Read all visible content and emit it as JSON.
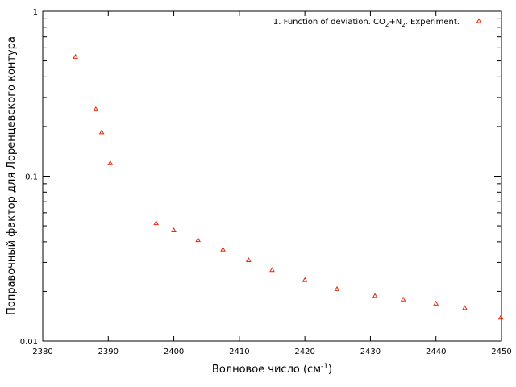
{
  "chart_data": {
    "type": "scatter",
    "title": "",
    "xlabel": "Волновое число (см",
    "xlabel_sup": "-1",
    "xlabel_tail": ")",
    "ylabel": "Поправочный фактор для Лоренцевского контура",
    "xlim": [
      2380,
      2450
    ],
    "ylim": [
      0.01,
      1
    ],
    "yscale": "log",
    "grid": false,
    "legend_position": "top-right",
    "x_ticks": [
      2380,
      2390,
      2400,
      2410,
      2420,
      2430,
      2440,
      2450
    ],
    "x_tick_labels": [
      "2380",
      "2390",
      "2400",
      "2410",
      "2420",
      "2430",
      "2440",
      "2450"
    ],
    "y_ticks": [
      0.01,
      0.1,
      1
    ],
    "y_tick_labels": [
      "0.01",
      "0.1",
      "1"
    ],
    "series": [
      {
        "name": "1. Function of deviation. CO2+N2. Experiment.",
        "legend_parts": [
          {
            "text": "1. Function of deviation. CO",
            "sub": false
          },
          {
            "text": "2",
            "sub": true
          },
          {
            "text": "+N",
            "sub": false
          },
          {
            "text": "2",
            "sub": true
          },
          {
            "text": ". Experiment.",
            "sub": false
          }
        ],
        "color": "#e8290b",
        "marker": "triangle",
        "x": [
          2385.0,
          2388.1,
          2389.0,
          2390.3,
          2397.3,
          2400.0,
          2403.7,
          2407.5,
          2411.4,
          2415.0,
          2420.0,
          2424.9,
          2430.7,
          2435.0,
          2440.0,
          2444.4,
          2449.9
        ],
        "y": [
          0.53,
          0.255,
          0.185,
          0.12,
          0.052,
          0.047,
          0.041,
          0.036,
          0.031,
          0.027,
          0.0235,
          0.0207,
          0.0188,
          0.0179,
          0.0169,
          0.0159,
          0.0139
        ]
      }
    ]
  }
}
